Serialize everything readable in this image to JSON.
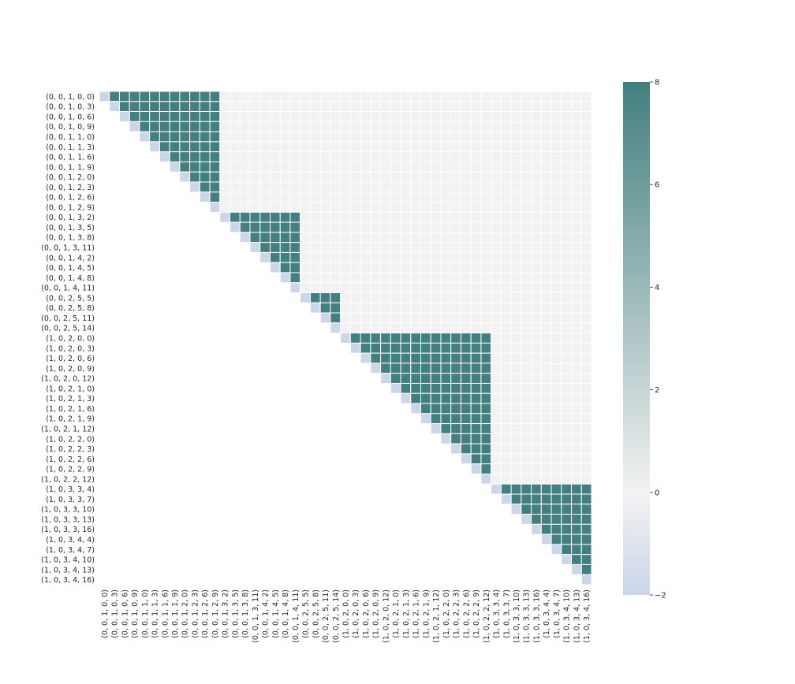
{
  "chart_data": {
    "type": "heatmap",
    "title": "",
    "xlabel": "",
    "ylabel": "",
    "labels": [
      "(0, 0, 1, 0, 0)",
      "(0, 0, 1, 0, 3)",
      "(0, 0, 1, 0, 6)",
      "(0, 0, 1, 0, 9)",
      "(0, 0, 1, 1, 0)",
      "(0, 0, 1, 1, 3)",
      "(0, 0, 1, 1, 6)",
      "(0, 0, 1, 1, 9)",
      "(0, 0, 1, 2, 0)",
      "(0, 0, 1, 2, 3)",
      "(0, 0, 1, 2, 6)",
      "(0, 0, 1, 2, 9)",
      "(0, 0, 1, 3, 2)",
      "(0, 0, 1, 3, 5)",
      "(0, 0, 1, 3, 8)",
      "(0, 0, 1, 3, 11)",
      "(0, 0, 1, 4, 2)",
      "(0, 0, 1, 4, 5)",
      "(0, 0, 1, 4, 8)",
      "(0, 0, 1, 4, 11)",
      "(0, 0, 2, 5, 5)",
      "(0, 0, 2, 5, 8)",
      "(0, 0, 2, 5, 11)",
      "(0, 0, 2, 5, 14)",
      "(1, 0, 2, 0, 0)",
      "(1, 0, 2, 0, 3)",
      "(1, 0, 2, 0, 6)",
      "(1, 0, 2, 0, 9)",
      "(1, 0, 2, 0, 12)",
      "(1, 0, 2, 1, 0)",
      "(1, 0, 2, 1, 3)",
      "(1, 0, 2, 1, 6)",
      "(1, 0, 2, 1, 9)",
      "(1, 0, 2, 1, 12)",
      "(1, 0, 2, 2, 0)",
      "(1, 0, 2, 2, 3)",
      "(1, 0, 2, 2, 6)",
      "(1, 0, 2, 2, 9)",
      "(1, 0, 2, 2, 12)",
      "(1, 0, 3, 3, 4)",
      "(1, 0, 3, 3, 7)",
      "(1, 0, 3, 3, 10)",
      "(1, 0, 3, 3, 13)",
      "(1, 0, 3, 3, 16)",
      "(1, 0, 3, 4, 4)",
      "(1, 0, 3, 4, 7)",
      "(1, 0, 3, 4, 10)",
      "(1, 0, 3, 4, 13)",
      "(1, 0, 3, 4, 16)"
    ],
    "blocks": [
      {
        "start": 0,
        "end": 11
      },
      {
        "start": 12,
        "end": 19
      },
      {
        "start": 20,
        "end": 23
      },
      {
        "start": 24,
        "end": 38
      },
      {
        "start": 39,
        "end": 48
      }
    ],
    "diagonal_value": -2,
    "in_block_value": 8,
    "off_block_value": 0,
    "lower_triangle": "masked",
    "colorbar": {
      "min": -2,
      "max": 8,
      "ticks": [
        -2,
        0,
        2,
        4,
        6,
        8
      ],
      "tick_labels": [
        "−2",
        "0",
        "2",
        "4",
        "6",
        "8"
      ],
      "colors": {
        "low": "#cbd6ea",
        "mid": "#f2f2f2",
        "high": "#437f7f"
      }
    },
    "grid": true,
    "legend": "colorbar right"
  }
}
